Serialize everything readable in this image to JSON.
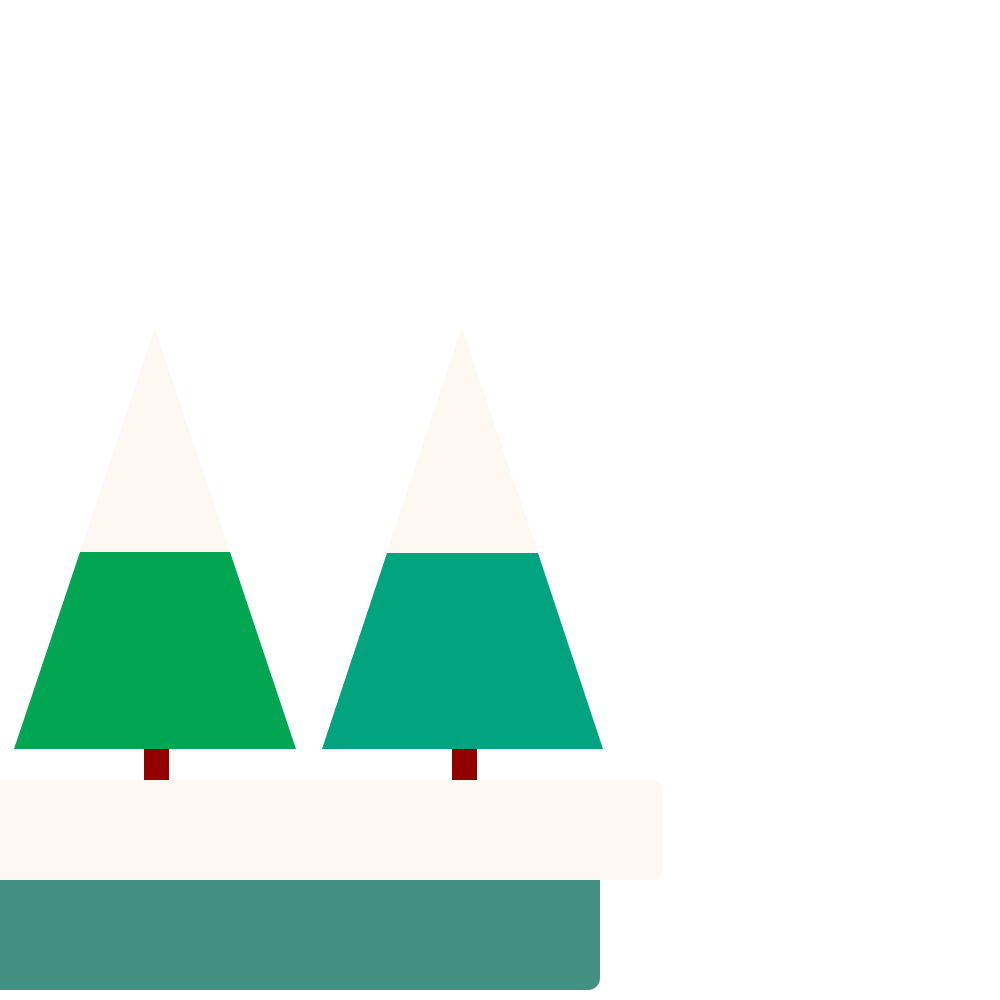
{
  "scene": {
    "trees": [
      {
        "name": "tree-left",
        "snow_color": "#fdf8f1",
        "foliage_color": "#02a552",
        "trunk_color": "#930000"
      },
      {
        "name": "tree-right",
        "snow_color": "#fdf8f1",
        "foliage_color": "#01a47e",
        "trunk_color": "#930000"
      }
    ],
    "ledge_color": "#fdf8f1",
    "base_color": "#438f82",
    "background_color": "#ffffff"
  }
}
